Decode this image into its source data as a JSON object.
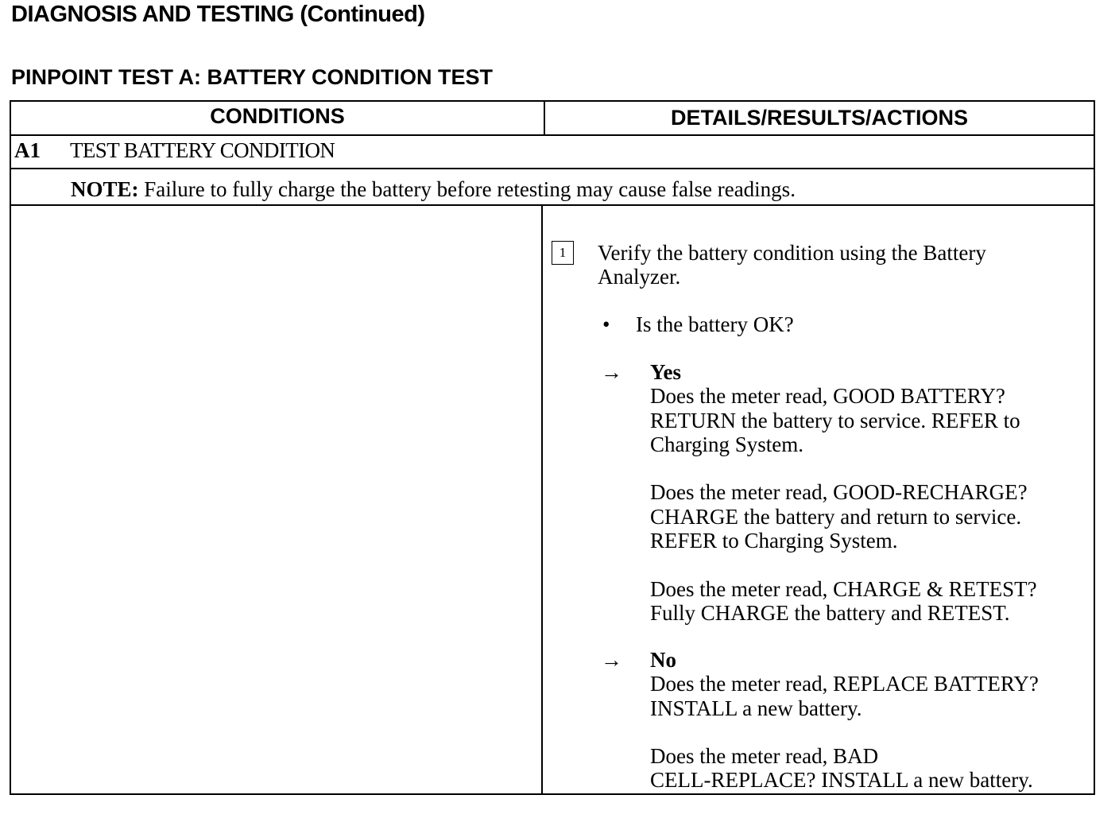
{
  "title": "DIAGNOSIS AND TESTING (Continued)",
  "subtitle": "PINPOINT TEST A:  BATTERY CONDITION TEST",
  "table": {
    "headers": [
      "CONDITIONS",
      "DETAILS/RESULTS/ACTIONS"
    ],
    "step_id": "A1",
    "step_title": "TEST BATTERY CONDITION",
    "note_label": "NOTE:",
    "note_text": "Failure to fully charge the battery before retesting may cause false readings.",
    "step_number": "1",
    "instruction": [
      "Verify the battery condition using the Battery",
      "Analyzer."
    ],
    "bullet_icon": "bullet",
    "question": "Is the battery OK?",
    "arrow_icon": "right-arrow",
    "yes": {
      "label": "Yes",
      "lines": [
        "Does the meter read, GOOD BATTERY?",
        "RETURN the battery to service. REFER to",
        "Charging System.",
        "",
        "Does the meter read, GOOD-RECHARGE?",
        "CHARGE the battery and return to service.",
        "REFER to  Charging System.",
        "",
        "Does the meter read, CHARGE & RETEST?",
        "Fully CHARGE the battery and RETEST."
      ]
    },
    "no": {
      "label": "No",
      "lines": [
        "Does the meter read, REPLACE BATTERY?",
        "INSTALL a new battery.",
        "",
        "Does the meter read, BAD",
        "CELL-REPLACE? INSTALL a new battery."
      ]
    }
  }
}
